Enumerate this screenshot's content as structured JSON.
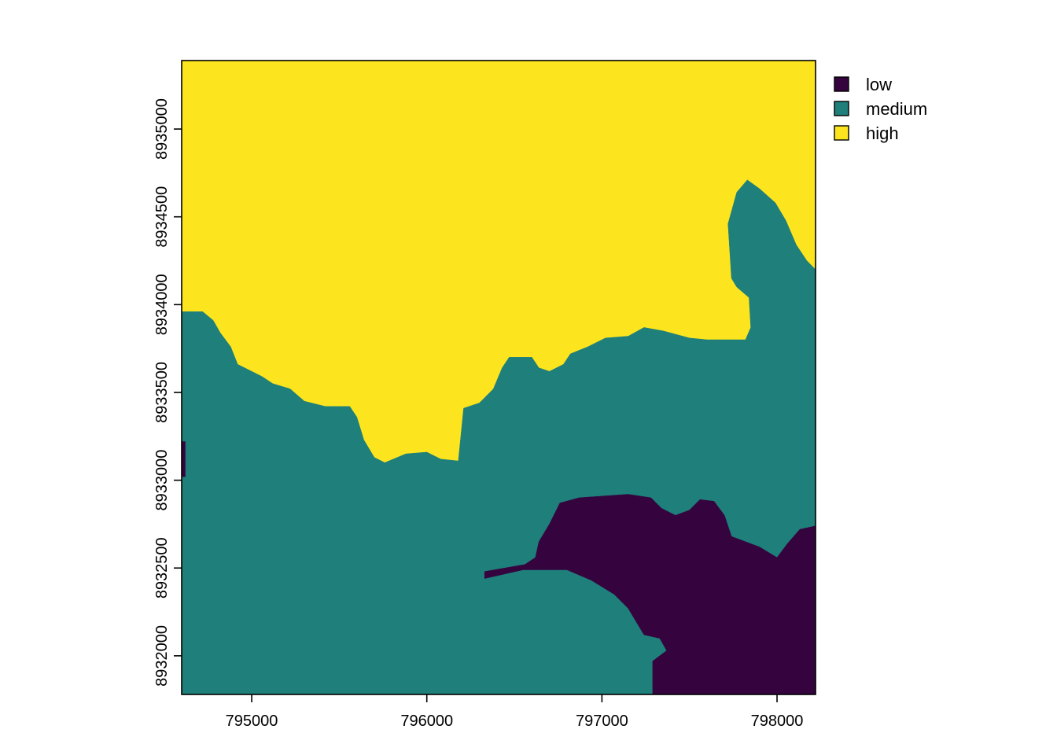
{
  "chart_data": {
    "type": "heatmap",
    "subtype": "categorical-raster-map",
    "title": "",
    "xlabel": "",
    "ylabel": "",
    "xlim": [
      794600,
      798220
    ],
    "ylim": [
      8931780,
      8935390
    ],
    "x_ticks": [
      795000,
      796000,
      797000,
      798000
    ],
    "y_ticks": [
      8932000,
      8932500,
      8933000,
      8933500,
      8934000,
      8934500,
      8935000
    ],
    "grid": false,
    "legend_position": "top-right",
    "categories": [
      {
        "name": "low",
        "color": "#35043f"
      },
      {
        "name": "medium",
        "color": "#1f7f7a"
      },
      {
        "name": "high",
        "color": "#fce51e"
      }
    ],
    "regions": [
      {
        "category": "high",
        "polygon": [
          [
            794600,
            8935390
          ],
          [
            798220,
            8935390
          ],
          [
            798220,
            8931780
          ],
          [
            794600,
            8931780
          ]
        ]
      },
      {
        "category": "medium",
        "polygon": [
          [
            794600,
            8933960
          ],
          [
            794720,
            8933960
          ],
          [
            794780,
            8933910
          ],
          [
            794820,
            8933840
          ],
          [
            794880,
            8933760
          ],
          [
            794920,
            8933660
          ],
          [
            795000,
            8933620
          ],
          [
            795060,
            8933590
          ],
          [
            795120,
            8933550
          ],
          [
            795220,
            8933520
          ],
          [
            795300,
            8933450
          ],
          [
            795420,
            8933420
          ],
          [
            795560,
            8933420
          ],
          [
            795600,
            8933360
          ],
          [
            795640,
            8933230
          ],
          [
            795700,
            8933130
          ],
          [
            795760,
            8933100
          ],
          [
            795880,
            8933150
          ],
          [
            796000,
            8933160
          ],
          [
            796080,
            8933120
          ],
          [
            796180,
            8933110
          ],
          [
            796210,
            8933410
          ],
          [
            796300,
            8933440
          ],
          [
            796380,
            8933520
          ],
          [
            796430,
            8933640
          ],
          [
            796470,
            8933700
          ],
          [
            796600,
            8933700
          ],
          [
            796640,
            8933640
          ],
          [
            796700,
            8933620
          ],
          [
            796780,
            8933660
          ],
          [
            796820,
            8933720
          ],
          [
            796920,
            8933760
          ],
          [
            797020,
            8933810
          ],
          [
            797150,
            8933820
          ],
          [
            797240,
            8933870
          ],
          [
            797350,
            8933850
          ],
          [
            797500,
            8933810
          ],
          [
            797600,
            8933800
          ],
          [
            797820,
            8933800
          ],
          [
            797850,
            8933870
          ],
          [
            797840,
            8934040
          ],
          [
            797770,
            8934100
          ],
          [
            797740,
            8934150
          ],
          [
            797720,
            8934460
          ],
          [
            797770,
            8934640
          ],
          [
            797830,
            8934710
          ],
          [
            797900,
            8934660
          ],
          [
            797990,
            8934580
          ],
          [
            798050,
            8934480
          ],
          [
            798110,
            8934340
          ],
          [
            798170,
            8934250
          ],
          [
            798220,
            8934200
          ],
          [
            798220,
            8931780
          ],
          [
            794600,
            8931780
          ]
        ]
      },
      {
        "category": "low",
        "polygon": [
          [
            796330,
            8932480
          ],
          [
            796560,
            8932520
          ],
          [
            796620,
            8932560
          ],
          [
            796640,
            8932650
          ],
          [
            796700,
            8932750
          ],
          [
            796760,
            8932870
          ],
          [
            796870,
            8932900
          ],
          [
            797150,
            8932920
          ],
          [
            797280,
            8932900
          ],
          [
            797340,
            8932840
          ],
          [
            797420,
            8932800
          ],
          [
            797500,
            8932830
          ],
          [
            797560,
            8932890
          ],
          [
            797640,
            8932880
          ],
          [
            797700,
            8932800
          ],
          [
            797740,
            8932680
          ],
          [
            797900,
            8932620
          ],
          [
            798000,
            8932560
          ],
          [
            798060,
            8932640
          ],
          [
            798130,
            8932720
          ],
          [
            798220,
            8932740
          ],
          [
            798220,
            8931780
          ],
          [
            797290,
            8931780
          ],
          [
            797290,
            8931970
          ],
          [
            797370,
            8932030
          ],
          [
            797330,
            8932100
          ],
          [
            797240,
            8932120
          ],
          [
            797150,
            8932270
          ],
          [
            797070,
            8932350
          ],
          [
            796940,
            8932430
          ],
          [
            796800,
            8932490
          ],
          [
            796550,
            8932490
          ],
          [
            796330,
            8932440
          ]
        ]
      },
      {
        "category": "low",
        "polygon": [
          [
            794600,
            8933220
          ],
          [
            794620,
            8933220
          ],
          [
            794620,
            8933020
          ],
          [
            794600,
            8933020
          ]
        ]
      }
    ]
  }
}
